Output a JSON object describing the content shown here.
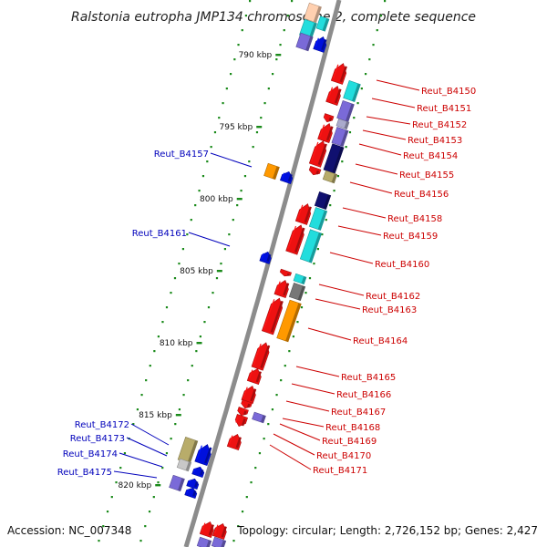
{
  "title": "Ralstonia eutropha JMP134 chromosome 2, complete sequence",
  "ticks": [
    "790 kbp",
    "795 kbp",
    "800 kbp",
    "805 kbp",
    "810 kbp",
    "815 kbp",
    "820 kbp"
  ],
  "right_labels": [
    "Reut_B4150",
    "Reut_B4151",
    "Reut_B4152",
    "Reut_B4153",
    "Reut_B4154",
    "Reut_B4155",
    "Reut_B4156",
    "Reut_B4158",
    "Reut_B4159",
    "Reut_B4160",
    "Reut_B4162",
    "Reut_B4163",
    "Reut_B4164",
    "Reut_B4165",
    "Reut_B4166",
    "Reut_B4167",
    "Reut_B4168",
    "Reut_B4169",
    "Reut_B4170",
    "Reut_B4171"
  ],
  "left_labels": [
    "Reut_B4157",
    "Reut_B4161",
    "Reut_B4172",
    "Reut_B4173",
    "Reut_B4174",
    "Reut_B4175"
  ],
  "footer": {
    "accession": "Accession: NC_007348",
    "stats": "Topology: circular; Length: 2,726,152 bp; Genes: 2,427"
  },
  "colors": {
    "backbone": "#8c8c8c",
    "dots": "#1a8a1a",
    "red": "#ee1111",
    "blue": "#0010dd",
    "navy": "#101070",
    "cyan": "#22dddd",
    "lavender": "#7a6ad8",
    "orange": "#ff9900",
    "khaki": "#b8ac6a",
    "gray": "#777777",
    "label_right": "#cc0000",
    "label_left": "#0000bb"
  }
}
